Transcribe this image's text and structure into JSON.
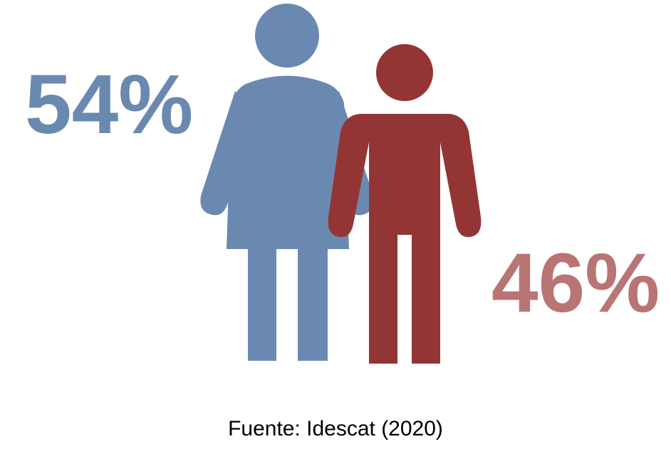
{
  "woman": {
    "share": "54%"
  },
  "man": {
    "share": "46%"
  },
  "source": "Fuente: Idescat (2020)"
}
